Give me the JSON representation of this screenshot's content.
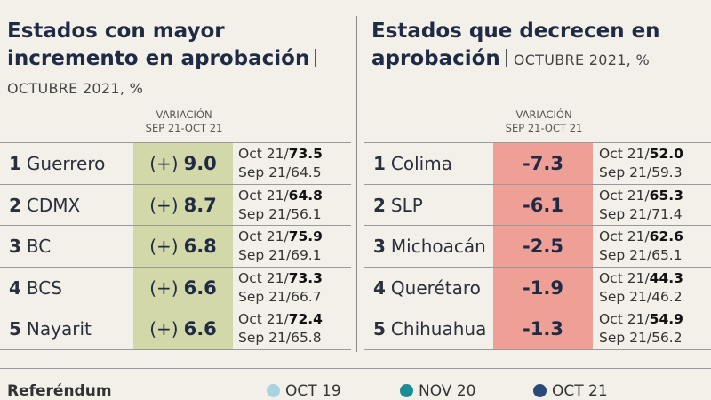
{
  "panels": [
    {
      "title": "Estados con mayor incremento en aprobación",
      "subtitle": "OCTUBRE 2021, %",
      "column_header": [
        "VARIACIÓN",
        "SEP 21-OCT 21"
      ],
      "rows": [
        {
          "rank": "1",
          "state": "Guerrero",
          "sign": "(+)",
          "variation": "9.0",
          "oct": "Oct 21/",
          "oct_value": "73.5",
          "sep": "Sep 21/64.5"
        },
        {
          "rank": "2",
          "state": "CDMX",
          "sign": "(+)",
          "variation": "8.7",
          "oct": "Oct 21/",
          "oct_value": "64.8",
          "sep": "Sep 21/56.1"
        },
        {
          "rank": "3",
          "state": "BC",
          "sign": "(+)",
          "variation": "6.8",
          "oct": "Oct 21/",
          "oct_value": "75.9",
          "sep": "Sep 21/69.1"
        },
        {
          "rank": "4",
          "state": "BCS",
          "sign": "(+)",
          "variation": "6.6",
          "oct": "Oct 21/",
          "oct_value": "73.3",
          "sep": "Sep 21/66.7"
        },
        {
          "rank": "5",
          "state": "Nayarit",
          "sign": "(+)",
          "variation": "6.6",
          "oct": "Oct 21/",
          "oct_value": "72.4",
          "sep": "Sep 21/65.8"
        }
      ]
    },
    {
      "title": "Estados que decrecen en aprobación",
      "subtitle": "OCTUBRE 2021, %",
      "column_header": [
        "VARIACIÓN",
        "SEP 21-OCT 21"
      ],
      "rows": [
        {
          "rank": "1",
          "state": "Colima",
          "variation": "-7.3",
          "oct": "Oct 21/",
          "oct_value": "52.0",
          "sep": "Sep 21/59.3"
        },
        {
          "rank": "2",
          "state": "SLP",
          "variation": "-6.1",
          "oct": "Oct 21/",
          "oct_value": "65.3",
          "sep": "Sep 21/71.4"
        },
        {
          "rank": "3",
          "state": "Michoacán",
          "variation": "-2.5",
          "oct": "Oct 21/",
          "oct_value": "62.6",
          "sep": "Sep 21/65.1"
        },
        {
          "rank": "4",
          "state": "Querétaro",
          "variation": "-1.9",
          "oct": "Oct 21/",
          "oct_value": "44.3",
          "sep": "Sep 21/46.2"
        },
        {
          "rank": "5",
          "state": "Chihuahua",
          "variation": "-1.3",
          "oct": "Oct 21/",
          "oct_value": "54.9",
          "sep": "Sep 21/56.2"
        }
      ]
    }
  ],
  "footer": {
    "title": "Referéndum",
    "legend": [
      "OCT 19",
      "NOV 20",
      "OCT 21"
    ]
  }
}
